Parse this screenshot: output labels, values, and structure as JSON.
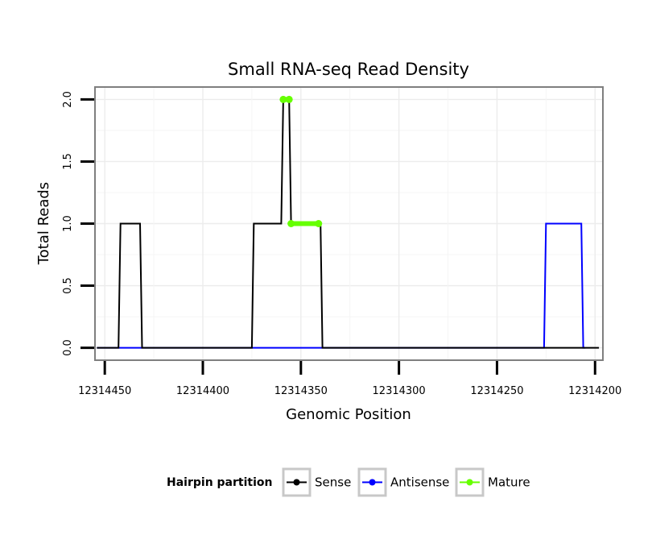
{
  "chart_data": {
    "type": "line",
    "title": "Small RNA-seq Read Density",
    "xlabel": "Genomic Position",
    "ylabel": "Total Reads",
    "xlim": [
      12314455,
      12314196
    ],
    "ylim": [
      -0.1,
      2.1
    ],
    "x_reversed": true,
    "x_ticks": [
      12314450,
      12314400,
      12314350,
      12314300,
      12314250,
      12314200
    ],
    "x_tick_labels": [
      "12314450",
      "12314400",
      "12314350",
      "12314300",
      "12314250",
      "12314200"
    ],
    "y_ticks": [
      0.0,
      0.5,
      1.0,
      1.5,
      2.0
    ],
    "y_tick_labels": [
      "0.0",
      "0.5",
      "1.0",
      "1.5",
      "2.0"
    ],
    "grid": true,
    "series": [
      {
        "name": "Sense",
        "color": "#000000",
        "x": [
          12314454,
          12314443,
          12314442,
          12314438,
          12314432,
          12314431,
          12314375,
          12314374,
          12314363,
          12314360,
          12314359,
          12314356,
          12314355,
          12314340,
          12314339,
          12314198
        ],
        "y": [
          0,
          0,
          1,
          1,
          1,
          0,
          0,
          1,
          1,
          1,
          2,
          2,
          1,
          1,
          0,
          0
        ]
      },
      {
        "name": "Antisense",
        "color": "#0000ff",
        "x": [
          12314454,
          12314226,
          12314225,
          12314207,
          12314206,
          12314205
        ],
        "y": [
          0,
          0,
          1,
          1,
          0,
          0
        ]
      },
      {
        "name": "Mature",
        "color": "#66ff00",
        "x": [
          12314359,
          12314356,
          null,
          12314355,
          12314341
        ],
        "y": [
          2,
          2,
          null,
          1,
          1
        ]
      }
    ],
    "legend": {
      "title": "Hairpin partition",
      "position": "bottom",
      "entries": [
        "Sense",
        "Antisense",
        "Mature"
      ]
    }
  }
}
